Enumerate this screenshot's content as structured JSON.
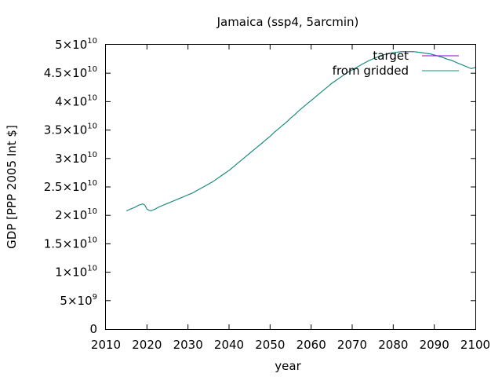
{
  "chart_data": {
    "type": "line",
    "title": "Jamaica (ssp4, 5arcmin)",
    "xlabel": "year",
    "ylabel": "GDP [PPP 2005 Int $]",
    "xlim": [
      2010,
      2100
    ],
    "ylim": [
      0,
      50000000000
    ],
    "xticks": [
      {
        "value": 2010,
        "label": "2010"
      },
      {
        "value": 2020,
        "label": "2020"
      },
      {
        "value": 2030,
        "label": "2030"
      },
      {
        "value": 2040,
        "label": "2040"
      },
      {
        "value": 2050,
        "label": "2050"
      },
      {
        "value": 2060,
        "label": "2060"
      },
      {
        "value": 2070,
        "label": "2070"
      },
      {
        "value": 2080,
        "label": "2080"
      },
      {
        "value": 2090,
        "label": "2090"
      },
      {
        "value": 2100,
        "label": "2100"
      }
    ],
    "yticks": [
      {
        "value": 0,
        "mant": "0",
        "exp": ""
      },
      {
        "value": 5000000000,
        "mant": "5×10",
        "exp": "9"
      },
      {
        "value": 10000000000,
        "mant": "1×10",
        "exp": "10"
      },
      {
        "value": 15000000000,
        "mant": "1.5×10",
        "exp": "10"
      },
      {
        "value": 20000000000,
        "mant": "2×10",
        "exp": "10"
      },
      {
        "value": 25000000000,
        "mant": "2.5×10",
        "exp": "10"
      },
      {
        "value": 30000000000,
        "mant": "3×10",
        "exp": "10"
      },
      {
        "value": 35000000000,
        "mant": "3.5×10",
        "exp": "10"
      },
      {
        "value": 40000000000,
        "mant": "4×10",
        "exp": "10"
      },
      {
        "value": 45000000000,
        "mant": "4.5×10",
        "exp": "10"
      },
      {
        "value": 50000000000,
        "mant": "5×10",
        "exp": "10"
      }
    ],
    "grid": false,
    "legend_position": "top-right",
    "x": [
      2015,
      2016,
      2017,
      2018,
      2019,
      2019.5,
      2020,
      2020.5,
      2021,
      2022,
      2023,
      2024,
      2025,
      2026,
      2027,
      2028,
      2029,
      2030,
      2031,
      2032,
      2033,
      2034,
      2035,
      2036,
      2037,
      2038,
      2039,
      2040,
      2041,
      2042,
      2043,
      2044,
      2045,
      2046,
      2047,
      2048,
      2049,
      2050,
      2051,
      2052,
      2053,
      2054,
      2055,
      2056,
      2057,
      2058,
      2059,
      2060,
      2061,
      2062,
      2063,
      2064,
      2065,
      2066,
      2067,
      2068,
      2069,
      2070,
      2071,
      2072,
      2073,
      2074,
      2075,
      2076,
      2077,
      2078,
      2079,
      2080,
      2081,
      2082,
      2083,
      2084,
      2085,
      2086,
      2087,
      2088,
      2089,
      2090,
      2091,
      2092,
      2093,
      2094,
      2095,
      2096,
      2097,
      2098,
      2099,
      2100
    ],
    "series": [
      {
        "name": "target",
        "color": "#9400d3",
        "values": [
          20800000000.0,
          21100000000.0,
          21400000000.0,
          21800000000.0,
          22000000000.0,
          21800000000.0,
          21100000000.0,
          20900000000.0,
          20800000000.0,
          21100000000.0,
          21500000000.0,
          21800000000.0,
          22100000000.0,
          22400000000.0,
          22700000000.0,
          23000000000.0,
          23300000000.0,
          23600000000.0,
          23900000000.0,
          24300000000.0,
          24700000000.0,
          25100000000.0,
          25500000000.0,
          25900000000.0,
          26400000000.0,
          26900000000.0,
          27400000000.0,
          27900000000.0,
          28500000000.0,
          29100000000.0,
          29700000000.0,
          30300000000.0,
          30900000000.0,
          31500000000.0,
          32100000000.0,
          32700000000.0,
          33300000000.0,
          33900000000.0,
          34600000000.0,
          35200000000.0,
          35800000000.0,
          36400000000.0,
          37100000000.0,
          37700000000.0,
          38400000000.0,
          39000000000.0,
          39600000000.0,
          40200000000.0,
          40800000000.0,
          41400000000.0,
          42000000000.0,
          42600000000.0,
          43200000000.0,
          43700000000.0,
          44200000000.0,
          44700000000.0,
          45200000000.0,
          45600000000.0,
          46000000000.0,
          46400000000.0,
          46800000000.0,
          47200000000.0,
          47500000000.0,
          47800000000.0,
          48100000000.0,
          48300000000.0,
          48500000000.0,
          48600000000.0,
          48700000000.0,
          48800000000.0,
          48800000000.0,
          48800000000.0,
          48800000000.0,
          48700000000.0,
          48600000000.0,
          48500000000.0,
          48400000000.0,
          48200000000.0,
          48000000000.0,
          47800000000.0,
          47500000000.0,
          47300000000.0,
          47000000000.0,
          46700000000.0,
          46400000000.0,
          46100000000.0,
          45800000000.0,
          46000000000.0
        ]
      },
      {
        "name": "from gridded",
        "color": "#009e73",
        "values": [
          20800000000.0,
          21100000000.0,
          21400000000.0,
          21800000000.0,
          22000000000.0,
          21800000000.0,
          21100000000.0,
          20900000000.0,
          20800000000.0,
          21100000000.0,
          21500000000.0,
          21800000000.0,
          22100000000.0,
          22400000000.0,
          22700000000.0,
          23000000000.0,
          23300000000.0,
          23600000000.0,
          23900000000.0,
          24300000000.0,
          24700000000.0,
          25100000000.0,
          25500000000.0,
          25900000000.0,
          26400000000.0,
          26900000000.0,
          27400000000.0,
          27900000000.0,
          28500000000.0,
          29100000000.0,
          29700000000.0,
          30300000000.0,
          30900000000.0,
          31500000000.0,
          32100000000.0,
          32700000000.0,
          33300000000.0,
          33900000000.0,
          34600000000.0,
          35200000000.0,
          35800000000.0,
          36400000000.0,
          37100000000.0,
          37700000000.0,
          38400000000.0,
          39000000000.0,
          39600000000.0,
          40200000000.0,
          40800000000.0,
          41400000000.0,
          42000000000.0,
          42600000000.0,
          43200000000.0,
          43700000000.0,
          44200000000.0,
          44700000000.0,
          45200000000.0,
          45600000000.0,
          46000000000.0,
          46400000000.0,
          46800000000.0,
          47200000000.0,
          47500000000.0,
          47800000000.0,
          48100000000.0,
          48300000000.0,
          48500000000.0,
          48600000000.0,
          48700000000.0,
          48800000000.0,
          48800000000.0,
          48800000000.0,
          48800000000.0,
          48700000000.0,
          48600000000.0,
          48500000000.0,
          48400000000.0,
          48200000000.0,
          48000000000.0,
          47800000000.0,
          47500000000.0,
          47300000000.0,
          47000000000.0,
          46700000000.0,
          46400000000.0,
          46100000000.0,
          45800000000.0,
          46000000000.0
        ]
      }
    ]
  }
}
